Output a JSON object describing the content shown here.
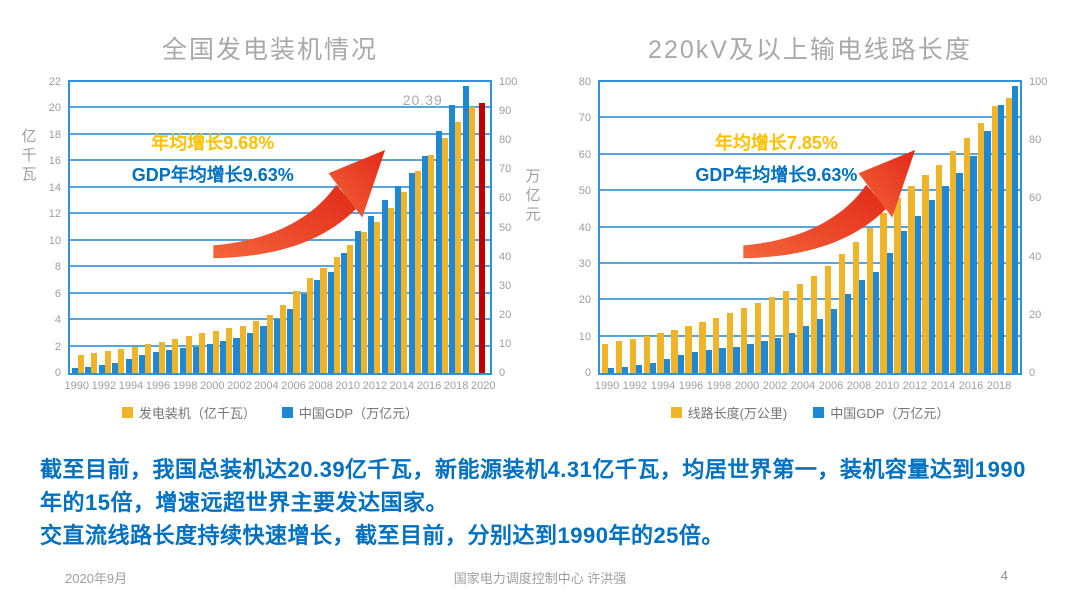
{
  "slide": {
    "body_text": {
      "para1": "截至目前，我国总装机达20.39亿千瓦，新能源装机4.31亿千瓦，均居世界第一，装机容量达到1990年的15倍，增速远超世界主要发达国家。",
      "para2": "交直流线路长度持续快速增长，截至目前，分别达到1990年的25倍。",
      "color": "#0070c0"
    },
    "footer": {
      "date": "2020年9月",
      "center": "国家电力调度控制中心 许洪强",
      "page": "4"
    }
  },
  "chart_data": [
    {
      "type": "bar",
      "title": "全国发电装机情况",
      "left_axis": {
        "label": "亿千瓦",
        "min": 0,
        "max": 22,
        "step": 2
      },
      "right_axis": {
        "label": "万亿元",
        "min": 0,
        "max": 100,
        "step": 10
      },
      "years": [
        1990,
        1991,
        1992,
        1993,
        1994,
        1995,
        1996,
        1997,
        1998,
        1999,
        2000,
        2001,
        2002,
        2003,
        2004,
        2005,
        2006,
        2007,
        2008,
        2009,
        2010,
        2011,
        2012,
        2013,
        2014,
        2015,
        2016,
        2017,
        2018,
        2019
      ],
      "x_tick_labels": [
        "1990",
        "1992",
        "1994",
        "1996",
        "1998",
        "2000",
        "2002",
        "2004",
        "2006",
        "2008",
        "2010",
        "2012",
        "2014",
        "2016",
        "2018",
        "2020"
      ],
      "series": [
        {
          "name": "中国GDP（万亿元）",
          "axis": "right",
          "color": "#1e88d5",
          "values": [
            1.89,
            2.2,
            2.72,
            3.57,
            4.86,
            6.13,
            7.2,
            8.0,
            8.55,
            9.06,
            10.03,
            11.09,
            12.17,
            13.74,
            16.18,
            18.73,
            21.94,
            27.01,
            31.92,
            34.85,
            41.21,
            48.79,
            53.86,
            59.3,
            64.36,
            68.89,
            74.64,
            83.2,
            91.93,
            98.65
          ]
        },
        {
          "name": "发电装机（亿千瓦）",
          "axis": "left",
          "color": "#f0b428",
          "values": [
            1.38,
            1.51,
            1.66,
            1.82,
            1.99,
            2.17,
            2.36,
            2.54,
            2.77,
            2.99,
            3.19,
            3.38,
            3.57,
            3.91,
            4.42,
            5.17,
            6.22,
            7.18,
            7.93,
            8.74,
            9.66,
            10.63,
            11.45,
            12.47,
            13.7,
            15.25,
            16.51,
            17.77,
            19.0,
            20.1
          ]
        }
      ],
      "extra_bar": {
        "year": "2020",
        "series": "发电装机",
        "value": 20.39,
        "axis": "left",
        "color": "#c00000",
        "data_label": "20.39"
      },
      "annotations": [
        {
          "text": "年均增长9.68%",
          "color": "#ffc000"
        },
        {
          "text": "GDP年均增长9.63%",
          "color": "#0070c0"
        }
      ],
      "legend": [
        {
          "label": "发电装机（亿千瓦）",
          "color": "#f0b428"
        },
        {
          "label": "中国GDP（万亿元）",
          "color": "#1e88d5"
        }
      ],
      "arrow_colors": {
        "tail": "#f4653a",
        "head": "#e12918"
      },
      "grid": true,
      "legend_position": "bottom"
    },
    {
      "type": "bar",
      "title": "220kV及以上输电线路长度",
      "left_axis": {
        "label": "",
        "min": 0,
        "max": 80,
        "step": 10
      },
      "right_axis": {
        "label": "",
        "min": 0,
        "max": 100,
        "step": 20
      },
      "years": [
        1990,
        1991,
        1992,
        1993,
        1994,
        1995,
        1996,
        1997,
        1998,
        1999,
        2000,
        2001,
        2002,
        2003,
        2004,
        2005,
        2006,
        2007,
        2008,
        2009,
        2010,
        2011,
        2012,
        2013,
        2014,
        2015,
        2016,
        2017,
        2018,
        2019
      ],
      "x_tick_labels": [
        "1990",
        "1992",
        "1994",
        "1996",
        "1998",
        "2000",
        "2002",
        "2004",
        "2006",
        "2008",
        "2010",
        "2012",
        "2014",
        "2016",
        "2018"
      ],
      "series": [
        {
          "name": "线路长度(万公里)",
          "axis": "left",
          "color": "#f0b428",
          "values": [
            8.0,
            8.7,
            9.4,
            10.1,
            10.9,
            11.9,
            12.9,
            14.0,
            15.2,
            16.5,
            17.8,
            19.2,
            20.8,
            22.6,
            24.6,
            26.7,
            29.5,
            32.7,
            36.0,
            39.9,
            44.0,
            48.0,
            51.5,
            54.5,
            57.2,
            60.9,
            64.5,
            68.6,
            73.3,
            75.5
          ]
        },
        {
          "name": "中国GDP（万亿元）",
          "axis": "right",
          "color": "#1e88d5",
          "values": [
            1.89,
            2.2,
            2.72,
            3.57,
            4.86,
            6.13,
            7.2,
            8.0,
            8.55,
            9.06,
            10.03,
            11.09,
            12.17,
            13.74,
            16.18,
            18.73,
            21.94,
            27.01,
            31.92,
            34.85,
            41.21,
            48.79,
            53.86,
            59.3,
            64.36,
            68.89,
            74.64,
            83.2,
            91.93,
            98.65
          ]
        }
      ],
      "annotations": [
        {
          "text": "年均增长7.85%",
          "color": "#ffc000"
        },
        {
          "text": "GDP年均增长9.63%",
          "color": "#0070c0"
        }
      ],
      "legend": [
        {
          "label": "线路长度(万公里)",
          "color": "#f0b428"
        },
        {
          "label": "中国GDP（万亿元）",
          "color": "#1e88d5"
        }
      ],
      "arrow_colors": {
        "tail": "#f4653a",
        "head": "#e12918"
      },
      "grid": true,
      "legend_position": "bottom"
    }
  ]
}
